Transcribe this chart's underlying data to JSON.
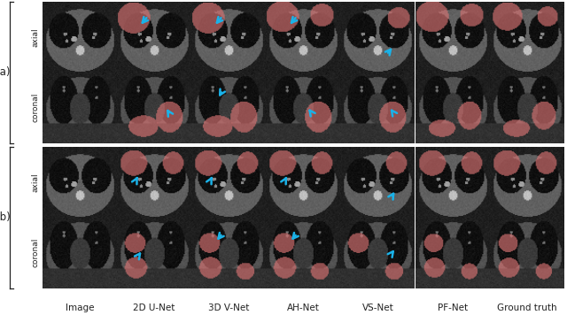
{
  "col_labels": [
    "Image",
    "2D U-Net",
    "3D V-Net",
    "AH-Net",
    "VS-Net",
    "PF-Net",
    "Ground truth"
  ],
  "row_group_labels": [
    "(a)",
    "(b)"
  ],
  "row_sub_labels": [
    "axial",
    "coronal",
    "axial",
    "coronal"
  ],
  "background_color": "#ffffff",
  "col_label_fontsize": 7.5,
  "n_cols": 7,
  "n_rows": 4,
  "figure_width": 6.4,
  "figure_height": 3.56,
  "bracket_color": "#222222",
  "arrow_color": "#1ab2e8",
  "seg_color": [
    0.85,
    0.45,
    0.45
  ],
  "ct_bg": 0.12,
  "ct_body": 0.38,
  "ct_lung": 0.06,
  "ct_bright": 0.75
}
